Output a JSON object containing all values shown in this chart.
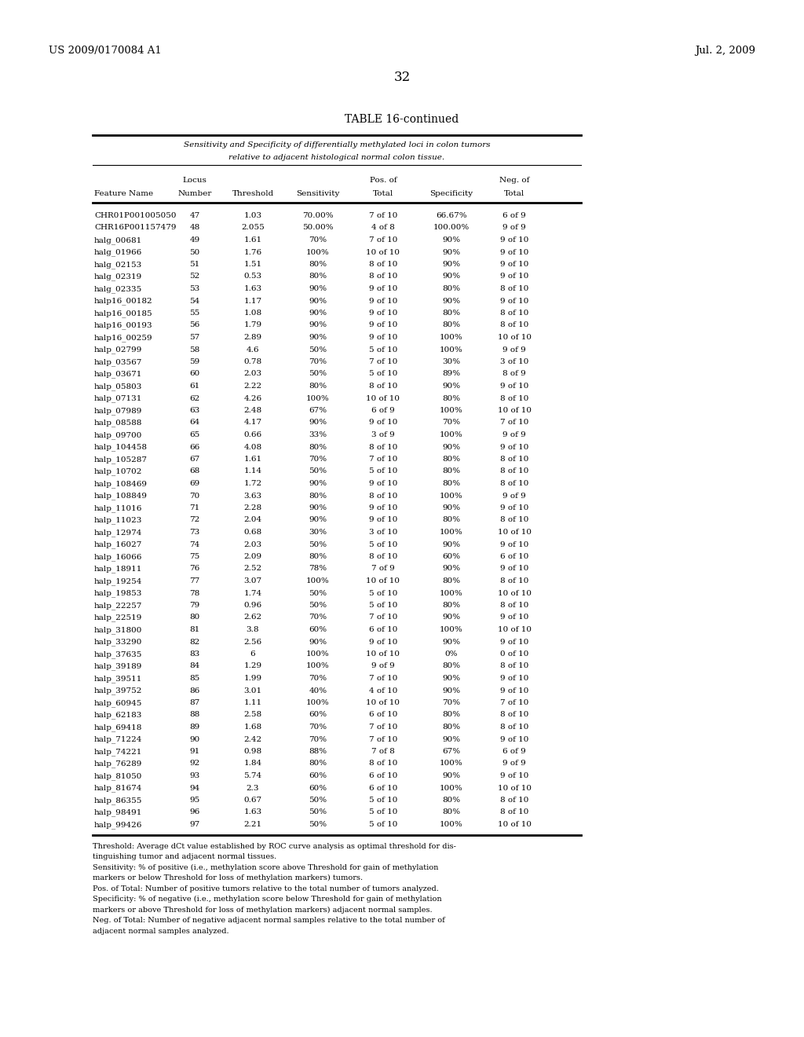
{
  "header_left": "US 2009/0170084 A1",
  "header_right": "Jul. 2, 2009",
  "page_number": "32",
  "table_title": "TABLE 16-continued",
  "subtitle_line1": "Sensitivity and Specificity of differentially methylated loci in colon tumors",
  "subtitle_line2": "relative to adjacent histological normal colon tissue.",
  "rows": [
    [
      "CHR01P001005050",
      "47",
      "1.03",
      "70.00%",
      "7 of 10",
      "66.67%",
      "6 of 9"
    ],
    [
      "CHR16P001157479",
      "48",
      "2.055",
      "50.00%",
      "4 of 8",
      "100.00%",
      "9 of 9"
    ],
    [
      "halg_00681",
      "49",
      "1.61",
      "70%",
      "7 of 10",
      "90%",
      "9 of 10"
    ],
    [
      "halg_01966",
      "50",
      "1.76",
      "100%",
      "10 of 10",
      "90%",
      "9 of 10"
    ],
    [
      "halg_02153",
      "51",
      "1.51",
      "80%",
      "8 of 10",
      "90%",
      "9 of 10"
    ],
    [
      "halg_02319",
      "52",
      "0.53",
      "80%",
      "8 of 10",
      "90%",
      "9 of 10"
    ],
    [
      "halg_02335",
      "53",
      "1.63",
      "90%",
      "9 of 10",
      "80%",
      "8 of 10"
    ],
    [
      "halp16_00182",
      "54",
      "1.17",
      "90%",
      "9 of 10",
      "90%",
      "9 of 10"
    ],
    [
      "halp16_00185",
      "55",
      "1.08",
      "90%",
      "9 of 10",
      "80%",
      "8 of 10"
    ],
    [
      "halp16_00193",
      "56",
      "1.79",
      "90%",
      "9 of 10",
      "80%",
      "8 of 10"
    ],
    [
      "halp16_00259",
      "57",
      "2.89",
      "90%",
      "9 of 10",
      "100%",
      "10 of 10"
    ],
    [
      "halp_02799",
      "58",
      "4.6",
      "50%",
      "5 of 10",
      "100%",
      "9 of 9"
    ],
    [
      "halp_03567",
      "59",
      "0.78",
      "70%",
      "7 of 10",
      "30%",
      "3 of 10"
    ],
    [
      "halp_03671",
      "60",
      "2.03",
      "50%",
      "5 of 10",
      "89%",
      "8 of 9"
    ],
    [
      "halp_05803",
      "61",
      "2.22",
      "80%",
      "8 of 10",
      "90%",
      "9 of 10"
    ],
    [
      "halp_07131",
      "62",
      "4.26",
      "100%",
      "10 of 10",
      "80%",
      "8 of 10"
    ],
    [
      "halp_07989",
      "63",
      "2.48",
      "67%",
      "6 of 9",
      "100%",
      "10 of 10"
    ],
    [
      "halp_08588",
      "64",
      "4.17",
      "90%",
      "9 of 10",
      "70%",
      "7 of 10"
    ],
    [
      "halp_09700",
      "65",
      "0.66",
      "33%",
      "3 of 9",
      "100%",
      "9 of 9"
    ],
    [
      "halp_104458",
      "66",
      "4.08",
      "80%",
      "8 of 10",
      "90%",
      "9 of 10"
    ],
    [
      "halp_105287",
      "67",
      "1.61",
      "70%",
      "7 of 10",
      "80%",
      "8 of 10"
    ],
    [
      "halp_10702",
      "68",
      "1.14",
      "50%",
      "5 of 10",
      "80%",
      "8 of 10"
    ],
    [
      "halp_108469",
      "69",
      "1.72",
      "90%",
      "9 of 10",
      "80%",
      "8 of 10"
    ],
    [
      "halp_108849",
      "70",
      "3.63",
      "80%",
      "8 of 10",
      "100%",
      "9 of 9"
    ],
    [
      "halp_11016",
      "71",
      "2.28",
      "90%",
      "9 of 10",
      "90%",
      "9 of 10"
    ],
    [
      "halp_11023",
      "72",
      "2.04",
      "90%",
      "9 of 10",
      "80%",
      "8 of 10"
    ],
    [
      "halp_12974",
      "73",
      "0.68",
      "30%",
      "3 of 10",
      "100%",
      "10 of 10"
    ],
    [
      "halp_16027",
      "74",
      "2.03",
      "50%",
      "5 of 10",
      "90%",
      "9 of 10"
    ],
    [
      "halp_16066",
      "75",
      "2.09",
      "80%",
      "8 of 10",
      "60%",
      "6 of 10"
    ],
    [
      "halp_18911",
      "76",
      "2.52",
      "78%",
      "7 of 9",
      "90%",
      "9 of 10"
    ],
    [
      "halp_19254",
      "77",
      "3.07",
      "100%",
      "10 of 10",
      "80%",
      "8 of 10"
    ],
    [
      "halp_19853",
      "78",
      "1.74",
      "50%",
      "5 of 10",
      "100%",
      "10 of 10"
    ],
    [
      "halp_22257",
      "79",
      "0.96",
      "50%",
      "5 of 10",
      "80%",
      "8 of 10"
    ],
    [
      "halp_22519",
      "80",
      "2.62",
      "70%",
      "7 of 10",
      "90%",
      "9 of 10"
    ],
    [
      "halp_31800",
      "81",
      "3.8",
      "60%",
      "6 of 10",
      "100%",
      "10 of 10"
    ],
    [
      "halp_33290",
      "82",
      "2.56",
      "90%",
      "9 of 10",
      "90%",
      "9 of 10"
    ],
    [
      "halp_37635",
      "83",
      "6",
      "100%",
      "10 of 10",
      "0%",
      "0 of 10"
    ],
    [
      "halp_39189",
      "84",
      "1.29",
      "100%",
      "9 of 9",
      "80%",
      "8 of 10"
    ],
    [
      "halp_39511",
      "85",
      "1.99",
      "70%",
      "7 of 10",
      "90%",
      "9 of 10"
    ],
    [
      "halp_39752",
      "86",
      "3.01",
      "40%",
      "4 of 10",
      "90%",
      "9 of 10"
    ],
    [
      "halp_60945",
      "87",
      "1.11",
      "100%",
      "10 of 10",
      "70%",
      "7 of 10"
    ],
    [
      "halp_62183",
      "88",
      "2.58",
      "60%",
      "6 of 10",
      "80%",
      "8 of 10"
    ],
    [
      "halp_69418",
      "89",
      "1.68",
      "70%",
      "7 of 10",
      "80%",
      "8 of 10"
    ],
    [
      "halp_71224",
      "90",
      "2.42",
      "70%",
      "7 of 10",
      "90%",
      "9 of 10"
    ],
    [
      "halp_74221",
      "91",
      "0.98",
      "88%",
      "7 of 8",
      "67%",
      "6 of 9"
    ],
    [
      "halp_76289",
      "92",
      "1.84",
      "80%",
      "8 of 10",
      "100%",
      "9 of 9"
    ],
    [
      "halp_81050",
      "93",
      "5.74",
      "60%",
      "6 of 10",
      "90%",
      "9 of 10"
    ],
    [
      "halp_81674",
      "94",
      "2.3",
      "60%",
      "6 of 10",
      "100%",
      "10 of 10"
    ],
    [
      "halp_86355",
      "95",
      "0.67",
      "50%",
      "5 of 10",
      "80%",
      "8 of 10"
    ],
    [
      "halp_98491",
      "96",
      "1.63",
      "50%",
      "5 of 10",
      "80%",
      "8 of 10"
    ],
    [
      "halp_99426",
      "97",
      "2.21",
      "50%",
      "5 of 10",
      "100%",
      "10 of 10"
    ]
  ],
  "footnotes": [
    "Threshold: Average dCt value established by ROC curve analysis as optimal threshold for dis-",
    "tinguishing tumor and adjacent normal tissues.",
    "Sensitivity: % of positive (i.e., methylation score above Threshold for gain of methylation",
    "markers or below Threshold for loss of methylation markers) tumors.",
    "Pos. of Total: Number of positive tumors relative to the total number of tumors analyzed.",
    "Specificity: % of negative (i.e., methylation score below Threshold for gain of methylation",
    "markers or above Threshold for loss of methylation markers) adjacent normal samples.",
    "Neg. of Total: Number of negative adjacent normal samples relative to the total number of",
    "adjacent normal samples analyzed."
  ],
  "bg_color": "#ffffff",
  "text_color": "#000000",
  "data_font_size": 7.5,
  "header_font_size": 9.5,
  "title_font_size": 10,
  "footnote_font_size": 7.0
}
